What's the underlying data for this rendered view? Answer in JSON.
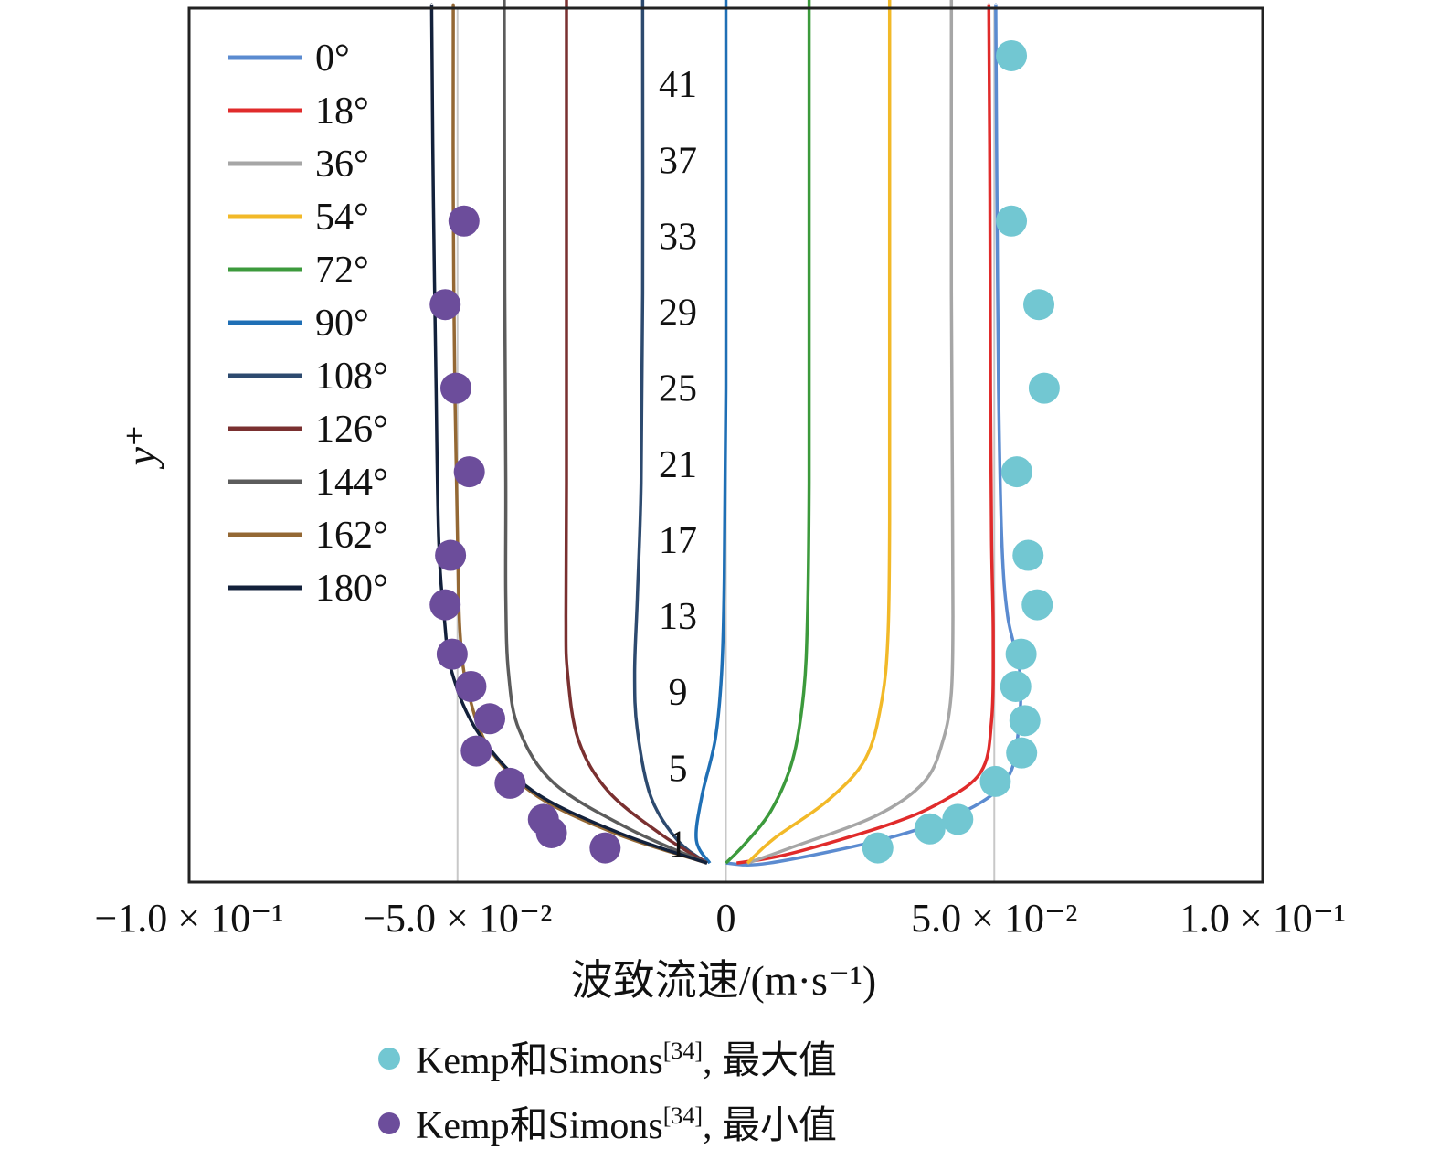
{
  "chart_data": {
    "type": "line",
    "title": "",
    "xlabel": "波致流速/(m·s⁻¹)",
    "ylabel": "y⁺",
    "xlim": [
      -0.1,
      0.1
    ],
    "ylim": [
      -1,
      45
    ],
    "grid": "vertical reference lines at -0.05, 0 and 0.05",
    "x_ticks": [
      {
        "value": -0.1,
        "label": "−1.0 × 10⁻¹"
      },
      {
        "value": -0.05,
        "label": "−5.0 × 10⁻²"
      },
      {
        "value": 0,
        "label": "0"
      },
      {
        "value": 0.05,
        "label": "5.0 × 10⁻²"
      },
      {
        "value": 0.1,
        "label": "1.0 × 10⁻¹"
      }
    ],
    "y_ticks": [
      "1",
      "5",
      "9",
      "13",
      "17",
      "21",
      "25",
      "29",
      "33",
      "37",
      "41"
    ],
    "y_tick_values": [
      1,
      5,
      9,
      13,
      17,
      21,
      25,
      29,
      33,
      37,
      41
    ],
    "legend_position": "top-left inside",
    "series": [
      {
        "name": "0°",
        "color": "#5b8bd0",
        "points": [
          [
            0.0,
            0.0
          ],
          [
            0.008,
            0.0
          ],
          [
            0.03,
            1.3
          ],
          [
            0.045,
            2.8
          ],
          [
            0.0525,
            4.5
          ],
          [
            0.0545,
            7.0
          ],
          [
            0.0548,
            10.0
          ],
          [
            0.0525,
            13.0
          ],
          [
            0.0514,
            17.0
          ],
          [
            0.0508,
            25.0
          ],
          [
            0.0505,
            35.0
          ],
          [
            0.0503,
            44.0
          ]
        ]
      },
      {
        "name": "18°",
        "color": "#e02b2b",
        "points": [
          [
            0.002,
            0.0
          ],
          [
            0.012,
            0.5
          ],
          [
            0.03,
            2.0
          ],
          [
            0.04,
            3.2
          ],
          [
            0.0475,
            4.8
          ],
          [
            0.0495,
            7.5
          ],
          [
            0.0498,
            12.0
          ],
          [
            0.0495,
            17.0
          ],
          [
            0.0493,
            25.0
          ],
          [
            0.0492,
            35.0
          ],
          [
            0.049,
            44.0
          ]
        ]
      },
      {
        "name": "36°",
        "color": "#a6a6a6",
        "points": [
          [
            0.004,
            0.0
          ],
          [
            0.012,
            0.8
          ],
          [
            0.028,
            2.5
          ],
          [
            0.037,
            4.3
          ],
          [
            0.0405,
            6.5
          ],
          [
            0.042,
            9.0
          ],
          [
            0.0423,
            13.0
          ],
          [
            0.0422,
            20.0
          ],
          [
            0.042,
            30.0
          ],
          [
            0.042,
            44.0
          ]
        ]
      },
      {
        "name": "54°",
        "color": "#f2b928",
        "points": [
          [
            0.004,
            0.0
          ],
          [
            0.009,
            1.3
          ],
          [
            0.019,
            3.3
          ],
          [
            0.026,
            5.5
          ],
          [
            0.029,
            8.5
          ],
          [
            0.0302,
            12.0
          ],
          [
            0.0305,
            18.0
          ],
          [
            0.0305,
            30.0
          ],
          [
            0.0305,
            44.0
          ]
        ]
      },
      {
        "name": "72°",
        "color": "#3c9a3c",
        "points": [
          [
            0.0,
            0.0
          ],
          [
            0.0035,
            1.0
          ],
          [
            0.0085,
            2.8
          ],
          [
            0.0125,
            5.5
          ],
          [
            0.0145,
            9.0
          ],
          [
            0.0152,
            13.0
          ],
          [
            0.0155,
            20.0
          ],
          [
            0.0155,
            30.0
          ],
          [
            0.0155,
            44.0
          ]
        ]
      },
      {
        "name": "90°",
        "color": "#1f6fb5",
        "points": [
          [
            -0.003,
            0.0
          ],
          [
            -0.0055,
            1.2
          ],
          [
            -0.0045,
            3.5
          ],
          [
            -0.002,
            6.5
          ],
          [
            -0.0008,
            10.0
          ],
          [
            -0.0003,
            15.0
          ],
          [
            0.0,
            25.0
          ],
          [
            0.0,
            44.0
          ]
        ]
      },
      {
        "name": "108°",
        "color": "#2d4a6f",
        "points": [
          [
            -0.0035,
            0.0
          ],
          [
            -0.009,
            1.2
          ],
          [
            -0.014,
            3.5
          ],
          [
            -0.0165,
            7.0
          ],
          [
            -0.017,
            10.0
          ],
          [
            -0.0165,
            14.0
          ],
          [
            -0.0158,
            20.0
          ],
          [
            -0.0155,
            30.0
          ],
          [
            -0.0155,
            44.0
          ]
        ]
      },
      {
        "name": "126°",
        "color": "#7a3030",
        "points": [
          [
            -0.0035,
            0.0
          ],
          [
            -0.012,
            1.5
          ],
          [
            -0.022,
            3.8
          ],
          [
            -0.0275,
            6.5
          ],
          [
            -0.0295,
            10.0
          ],
          [
            -0.0298,
            13.0
          ],
          [
            -0.0297,
            20.0
          ],
          [
            -0.0297,
            30.0
          ],
          [
            -0.0297,
            44.0
          ]
        ]
      },
      {
        "name": "144°",
        "color": "#5c5c5c",
        "points": [
          [
            -0.0035,
            0.0
          ],
          [
            -0.018,
            1.8
          ],
          [
            -0.032,
            4.2
          ],
          [
            -0.0385,
            7.0
          ],
          [
            -0.0405,
            10.0
          ],
          [
            -0.041,
            14.0
          ],
          [
            -0.041,
            20.0
          ],
          [
            -0.0412,
            30.0
          ],
          [
            -0.0413,
            44.0
          ]
        ]
      },
      {
        "name": "162°",
        "color": "#946834",
        "points": [
          [
            -0.0035,
            0.0
          ],
          [
            -0.02,
            1.5
          ],
          [
            -0.035,
            3.5
          ],
          [
            -0.044,
            6.0
          ],
          [
            -0.048,
            9.0
          ],
          [
            -0.0495,
            12.0
          ],
          [
            -0.05,
            17.0
          ],
          [
            -0.0505,
            25.0
          ],
          [
            -0.0508,
            35.0
          ],
          [
            -0.0508,
            44.0
          ]
        ]
      },
      {
        "name": "180°",
        "color": "#13213b",
        "points": [
          [
            -0.0035,
            0.0
          ],
          [
            -0.02,
            1.6
          ],
          [
            -0.036,
            3.8
          ],
          [
            -0.046,
            6.8
          ],
          [
            -0.051,
            10.0
          ],
          [
            -0.0525,
            13.0
          ],
          [
            -0.0535,
            17.0
          ],
          [
            -0.054,
            25.0
          ],
          [
            -0.0545,
            35.0
          ],
          [
            -0.0548,
            44.0
          ]
        ]
      }
    ],
    "scatter": [
      {
        "name": "Kemp和Simons",
        "ref": "[34]",
        "suffix": ", 最大值",
        "color": "#72c7d2",
        "points": [
          [
            0.0283,
            0.8
          ],
          [
            0.038,
            1.8
          ],
          [
            0.0432,
            2.3
          ],
          [
            0.0502,
            4.3
          ],
          [
            0.0551,
            5.8
          ],
          [
            0.0557,
            7.5
          ],
          [
            0.054,
            9.3
          ],
          [
            0.055,
            11.0
          ],
          [
            0.058,
            13.6
          ],
          [
            0.0563,
            16.2
          ],
          [
            0.0542,
            20.6
          ],
          [
            0.0593,
            25.0
          ],
          [
            0.0583,
            29.4
          ],
          [
            0.0532,
            33.8
          ],
          [
            0.0532,
            42.5
          ]
        ]
      },
      {
        "name": "Kemp和Simons",
        "ref": "[34]",
        "suffix": ", 最小值",
        "color": "#6c4d9b",
        "points": [
          [
            -0.0225,
            0.8
          ],
          [
            -0.0325,
            1.6
          ],
          [
            -0.034,
            2.3
          ],
          [
            -0.0402,
            4.2
          ],
          [
            -0.0465,
            5.9
          ],
          [
            -0.044,
            7.6
          ],
          [
            -0.0475,
            9.3
          ],
          [
            -0.051,
            11.0
          ],
          [
            -0.0523,
            13.6
          ],
          [
            -0.0513,
            16.2
          ],
          [
            -0.0478,
            20.6
          ],
          [
            -0.0503,
            25.0
          ],
          [
            -0.0523,
            29.4
          ],
          [
            -0.0488,
            33.8
          ]
        ]
      }
    ]
  }
}
